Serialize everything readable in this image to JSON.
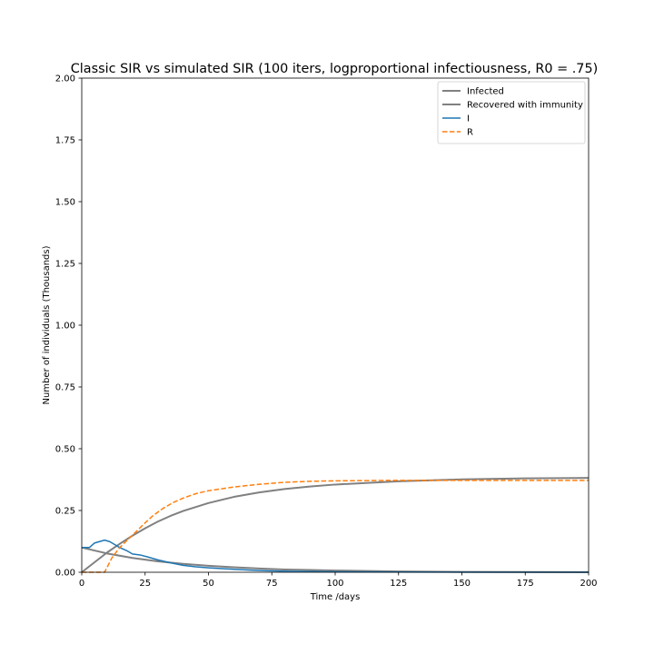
{
  "chart_data": {
    "type": "line",
    "title": "Classic SIR vs simulated SIR (100 iters, logproportional infectiousness, R0 = .75)",
    "xlabel": "Time /days",
    "ylabel": "Number of individuals (Thousands)",
    "xlim": [
      0,
      200
    ],
    "ylim": [
      0,
      2.0
    ],
    "xticks": [
      0,
      25,
      50,
      75,
      100,
      125,
      150,
      175,
      200
    ],
    "xtick_labels": [
      "0",
      "25",
      "50",
      "75",
      "100",
      "125",
      "150",
      "175",
      "200"
    ],
    "yticks": [
      0,
      0.25,
      0.5,
      0.75,
      1.0,
      1.25,
      1.5,
      1.75,
      2.0
    ],
    "ytick_labels": [
      "0.00",
      "0.25",
      "0.50",
      "0.75",
      "1.00",
      "1.25",
      "1.50",
      "1.75",
      "2.00"
    ],
    "grid": false,
    "legend_position": "top-right",
    "series": [
      {
        "name": "Infected",
        "color": "#808080",
        "style": "solid",
        "x": [
          0,
          10,
          20,
          30,
          40,
          50,
          60,
          70,
          80,
          90,
          100,
          125,
          150,
          175,
          200
        ],
        "y": [
          0.1,
          0.076,
          0.058,
          0.044,
          0.034,
          0.026,
          0.02,
          0.015,
          0.011,
          0.009,
          0.007,
          0.003,
          0.0015,
          0.0007,
          0.0003
        ]
      },
      {
        "name": "Recovered with immunity",
        "color": "#808080",
        "style": "solid",
        "x": [
          0,
          5,
          10,
          15,
          20,
          25,
          30,
          35,
          40,
          50,
          60,
          70,
          80,
          90,
          100,
          125,
          150,
          175,
          200
        ],
        "y": [
          0.0,
          0.04,
          0.08,
          0.115,
          0.148,
          0.178,
          0.205,
          0.228,
          0.248,
          0.28,
          0.305,
          0.323,
          0.337,
          0.347,
          0.355,
          0.368,
          0.376,
          0.38,
          0.382
        ]
      },
      {
        "name": "I",
        "color": "#1f77b4",
        "style": "solid",
        "x": [
          0,
          3,
          5,
          7,
          9,
          11,
          13,
          15,
          18,
          20,
          23,
          26,
          30,
          35,
          40,
          45,
          50,
          60,
          70,
          80,
          100,
          125,
          150,
          200
        ],
        "y": [
          0.1,
          0.1,
          0.118,
          0.124,
          0.13,
          0.124,
          0.112,
          0.1,
          0.086,
          0.074,
          0.07,
          0.062,
          0.05,
          0.038,
          0.028,
          0.022,
          0.018,
          0.012,
          0.007,
          0.004,
          0.002,
          0.001,
          0.0005,
          0.0
        ]
      },
      {
        "name": "R",
        "color": "#ff7f0e",
        "style": "dashed",
        "x": [
          0,
          5,
          9,
          10,
          12,
          15,
          18,
          20,
          25,
          28,
          32,
          36,
          40,
          45,
          50,
          60,
          70,
          80,
          90,
          100,
          125,
          150,
          175,
          200
        ],
        "y": [
          0.0,
          0.0,
          0.0,
          0.02,
          0.06,
          0.1,
          0.13,
          0.15,
          0.2,
          0.228,
          0.258,
          0.282,
          0.3,
          0.318,
          0.33,
          0.345,
          0.356,
          0.364,
          0.368,
          0.37,
          0.372,
          0.372,
          0.372,
          0.372
        ]
      }
    ]
  }
}
